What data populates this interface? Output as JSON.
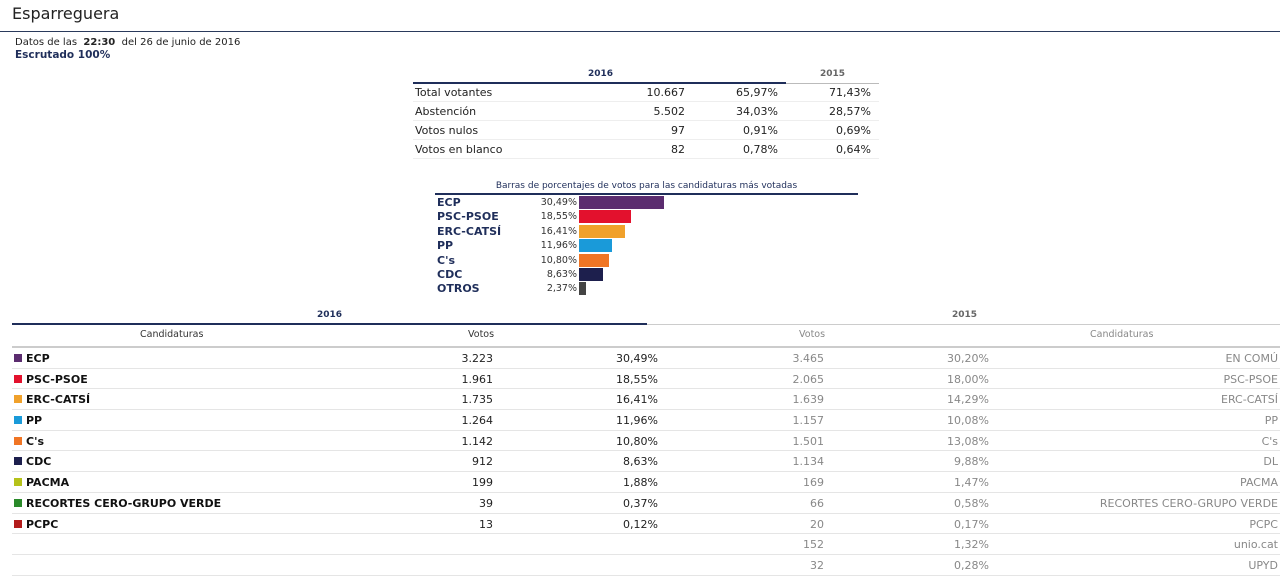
{
  "page": {
    "title": "Esparreguera",
    "data_prefix": "Datos de las",
    "time": "22:30",
    "date_text": "del 26 de junio de 2016",
    "scrutiny": "Escrutado 100%"
  },
  "summary": {
    "year_current": "2016",
    "year_previous": "2015",
    "rows": [
      {
        "label": "Total votantes",
        "value": "10.667",
        "pct": "65,97%",
        "pct_prev": "71,43%"
      },
      {
        "label": "Abstención",
        "value": "5.502",
        "pct": "34,03%",
        "pct_prev": "28,57%"
      },
      {
        "label": "Votos nulos",
        "value": "97",
        "pct": "0,91%",
        "pct_prev": "0,69%"
      },
      {
        "label": "Votos en blanco",
        "value": "82",
        "pct": "0,78%",
        "pct_prev": "0,64%"
      }
    ]
  },
  "bars": {
    "caption": "Barras de porcentajes de votos para las candidaturas más votadas",
    "items": [
      {
        "name": "ECP",
        "pct_label": "30,49%",
        "value": 30.49,
        "color": "#5b2c6f"
      },
      {
        "name": "PSC-PSOE",
        "pct_label": "18,55%",
        "value": 18.55,
        "color": "#e3112d"
      },
      {
        "name": "ERC-CATSÍ",
        "pct_label": "16,41%",
        "value": 16.41,
        "color": "#f0a12b"
      },
      {
        "name": "PP",
        "pct_label": "11,96%",
        "value": 11.96,
        "color": "#1a9ad9"
      },
      {
        "name": "C's",
        "pct_label": "10,80%",
        "value": 10.8,
        "color": "#f07524"
      },
      {
        "name": "CDC",
        "pct_label": "8,63%",
        "value": 8.63,
        "color": "#1d1f4d"
      },
      {
        "name": "OTROS",
        "pct_label": "2,37%",
        "value": 2.37,
        "color": "#444444"
      }
    ]
  },
  "results": {
    "year_current": "2016",
    "year_previous": "2015",
    "col_candidaturas": "Candidaturas",
    "col_votos": "Votos",
    "col_votos_prev": "Votos",
    "col_candidaturas_prev": "Candidaturas",
    "rows": [
      {
        "color": "#5b2c6f",
        "name": "ECP",
        "votes": "3.223",
        "pct": "30,49%",
        "votes_prev": "3.465",
        "pct_prev": "30,20%",
        "name_prev": "EN COMÚ"
      },
      {
        "color": "#e3112d",
        "name": "PSC-PSOE",
        "votes": "1.961",
        "pct": "18,55%",
        "votes_prev": "2.065",
        "pct_prev": "18,00%",
        "name_prev": "PSC-PSOE"
      },
      {
        "color": "#f0a12b",
        "name": "ERC-CATSÍ",
        "votes": "1.735",
        "pct": "16,41%",
        "votes_prev": "1.639",
        "pct_prev": "14,29%",
        "name_prev": "ERC-CATSÍ"
      },
      {
        "color": "#1a9ad9",
        "name": "PP",
        "votes": "1.264",
        "pct": "11,96%",
        "votes_prev": "1.157",
        "pct_prev": "10,08%",
        "name_prev": "PP"
      },
      {
        "color": "#f07524",
        "name": "C's",
        "votes": "1.142",
        "pct": "10,80%",
        "votes_prev": "1.501",
        "pct_prev": "13,08%",
        "name_prev": "C's"
      },
      {
        "color": "#1d1f4d",
        "name": "CDC",
        "votes": "912",
        "pct": "8,63%",
        "votes_prev": "1.134",
        "pct_prev": "9,88%",
        "name_prev": "DL"
      },
      {
        "color": "#b5c21a",
        "name": "PACMA",
        "votes": "199",
        "pct": "1,88%",
        "votes_prev": "169",
        "pct_prev": "1,47%",
        "name_prev": "PACMA"
      },
      {
        "color": "#2a8a2a",
        "name": "RECORTES CERO-GRUPO VERDE",
        "votes": "39",
        "pct": "0,37%",
        "votes_prev": "66",
        "pct_prev": "0,58%",
        "name_prev": "RECORTES CERO-GRUPO VERDE"
      },
      {
        "color": "#b31b1b",
        "name": "PCPC",
        "votes": "13",
        "pct": "0,12%",
        "votes_prev": "20",
        "pct_prev": "0,17%",
        "name_prev": "PCPC"
      },
      {
        "color": "",
        "name": "",
        "votes": "",
        "pct": "",
        "votes_prev": "152",
        "pct_prev": "1,32%",
        "name_prev": "unio.cat"
      },
      {
        "color": "",
        "name": "",
        "votes": "",
        "pct": "",
        "votes_prev": "32",
        "pct_prev": "0,28%",
        "name_prev": "UPYD"
      }
    ]
  }
}
